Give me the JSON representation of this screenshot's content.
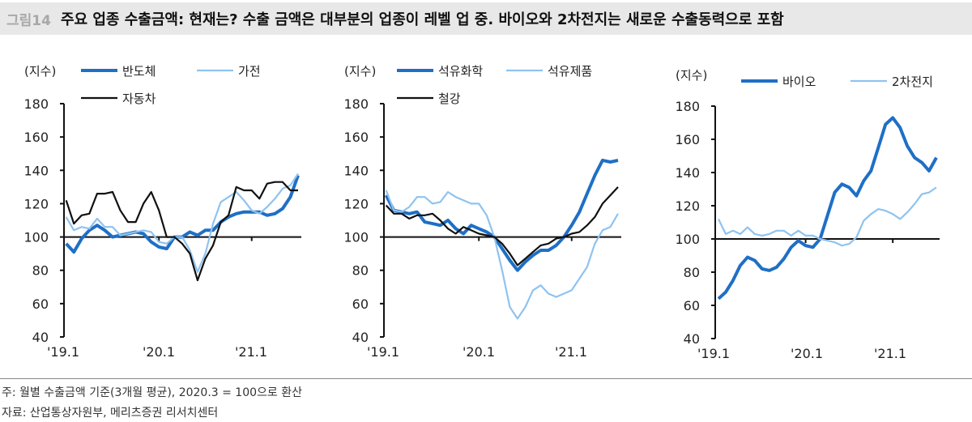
{
  "header": {
    "figure_no": "그림14",
    "title": "주요 업종 수출금액: 현재는? 수출 금액은 대부분의 업종이 레벨 업 중. 바이오와 2차전지는 새로운 수출동력으로 포함"
  },
  "footer": {
    "note": "주: 월별 수출금액 기준(3개월 평균), 2020.3 = 100으로 환산",
    "source": "자료: 산업통상자원부, 메리츠증권 리서치센터"
  },
  "colors": {
    "dark_blue": "#1f6fc5",
    "light_blue": "#8fc3f0",
    "black": "#111111"
  },
  "chart_data": [
    {
      "type": "line",
      "ylabel": "(지수)",
      "ylim": [
        40,
        180
      ],
      "yticks": [
        "40",
        "60",
        "80",
        "100",
        "120",
        "140",
        "160",
        "180"
      ],
      "x_start": "2019.1",
      "x_end": "2021.7",
      "xtick_labels": [
        "'19.1",
        "'20.1",
        "'21.1"
      ],
      "reference_line": 100,
      "legend": "top",
      "series": [
        {
          "name": "반도체",
          "color": "#1f6fc5",
          "width": "thick",
          "values": [
            96,
            91,
            99,
            104,
            107,
            104,
            100,
            101,
            102,
            103,
            102,
            97,
            94,
            93,
            100,
            100,
            103,
            101,
            104,
            104,
            109,
            112,
            114,
            115,
            115,
            115,
            113,
            114,
            117,
            124,
            137
          ]
        },
        {
          "name": "가전",
          "color": "#8fc3f0",
          "width": "thin",
          "values": [
            112,
            104,
            106,
            105,
            111,
            106,
            106,
            101,
            102,
            103,
            104,
            103,
            97,
            96,
            100,
            100,
            92,
            79,
            90,
            108,
            121,
            124,
            127,
            122,
            116,
            114,
            118,
            123,
            129,
            131,
            138
          ]
        },
        {
          "name": "자동차",
          "color": "#111111",
          "width": "thin",
          "values": [
            122,
            108,
            113,
            114,
            126,
            126,
            127,
            116,
            109,
            109,
            120,
            127,
            116,
            100,
            100,
            96,
            90,
            74,
            87,
            95,
            109,
            113,
            130,
            128,
            128,
            123,
            132,
            133,
            133,
            128,
            128
          ]
        }
      ]
    },
    {
      "type": "line",
      "ylabel": "(지수)",
      "ylim": [
        40,
        180
      ],
      "yticks": [
        "40",
        "60",
        "80",
        "100",
        "120",
        "140",
        "160",
        "180"
      ],
      "x_start": "2019.1",
      "x_end": "2021.7",
      "xtick_labels": [
        "'19.1",
        "'20.1",
        "'21.1"
      ],
      "reference_line": 100,
      "legend": "top",
      "series": [
        {
          "name": "석유화학",
          "color": "#1f6fc5",
          "width": "thick",
          "values": [
            125,
            116,
            115,
            114,
            115,
            109,
            108,
            107,
            110,
            105,
            102,
            107,
            105,
            103,
            100,
            93,
            86,
            80,
            85,
            89,
            92,
            92,
            95,
            100,
            107,
            115,
            126,
            137,
            146,
            145,
            146
          ]
        },
        {
          "name": "석유제품",
          "color": "#8fc3f0",
          "width": "thin",
          "values": [
            128,
            116,
            115,
            118,
            124,
            124,
            120,
            121,
            127,
            124,
            122,
            120,
            120,
            113,
            100,
            80,
            58,
            51,
            58,
            68,
            71,
            66,
            64,
            66,
            68,
            75,
            82,
            96,
            104,
            106,
            114
          ]
        },
        {
          "name": "철강",
          "color": "#111111",
          "width": "thin",
          "values": [
            119,
            114,
            114,
            111,
            113,
            113,
            114,
            110,
            105,
            102,
            106,
            104,
            102,
            101,
            100,
            96,
            90,
            83,
            87,
            91,
            95,
            96,
            99,
            100,
            102,
            103,
            107,
            112,
            120,
            125,
            130
          ]
        }
      ]
    },
    {
      "type": "line",
      "ylabel": "(지수)",
      "ylim": [
        40,
        180
      ],
      "yticks": [
        "40",
        "60",
        "80",
        "100",
        "120",
        "140",
        "160",
        "180"
      ],
      "x_start": "2019.1",
      "x_end": "2021.7",
      "xtick_labels": [
        "'19.1",
        "'20.1",
        "'21.1"
      ],
      "reference_line": 100,
      "legend": "top",
      "series": [
        {
          "name": "바이오",
          "color": "#1f6fc5",
          "width": "thick",
          "values": [
            64,
            68,
            75,
            84,
            89,
            87,
            82,
            81,
            83,
            88,
            95,
            99,
            96,
            95,
            100,
            114,
            128,
            133,
            131,
            126,
            135,
            141,
            155,
            169,
            173,
            167,
            156,
            149,
            146,
            141,
            149
          ]
        },
        {
          "name": "2차전지",
          "color": "#8fc3f0",
          "width": "thin",
          "values": [
            112,
            103,
            105,
            103,
            107,
            103,
            102,
            103,
            105,
            105,
            102,
            105,
            102,
            102,
            100,
            99,
            98,
            96,
            97,
            101,
            111,
            115,
            118,
            117,
            115,
            112,
            116,
            121,
            127,
            128,
            131
          ]
        }
      ]
    }
  ]
}
